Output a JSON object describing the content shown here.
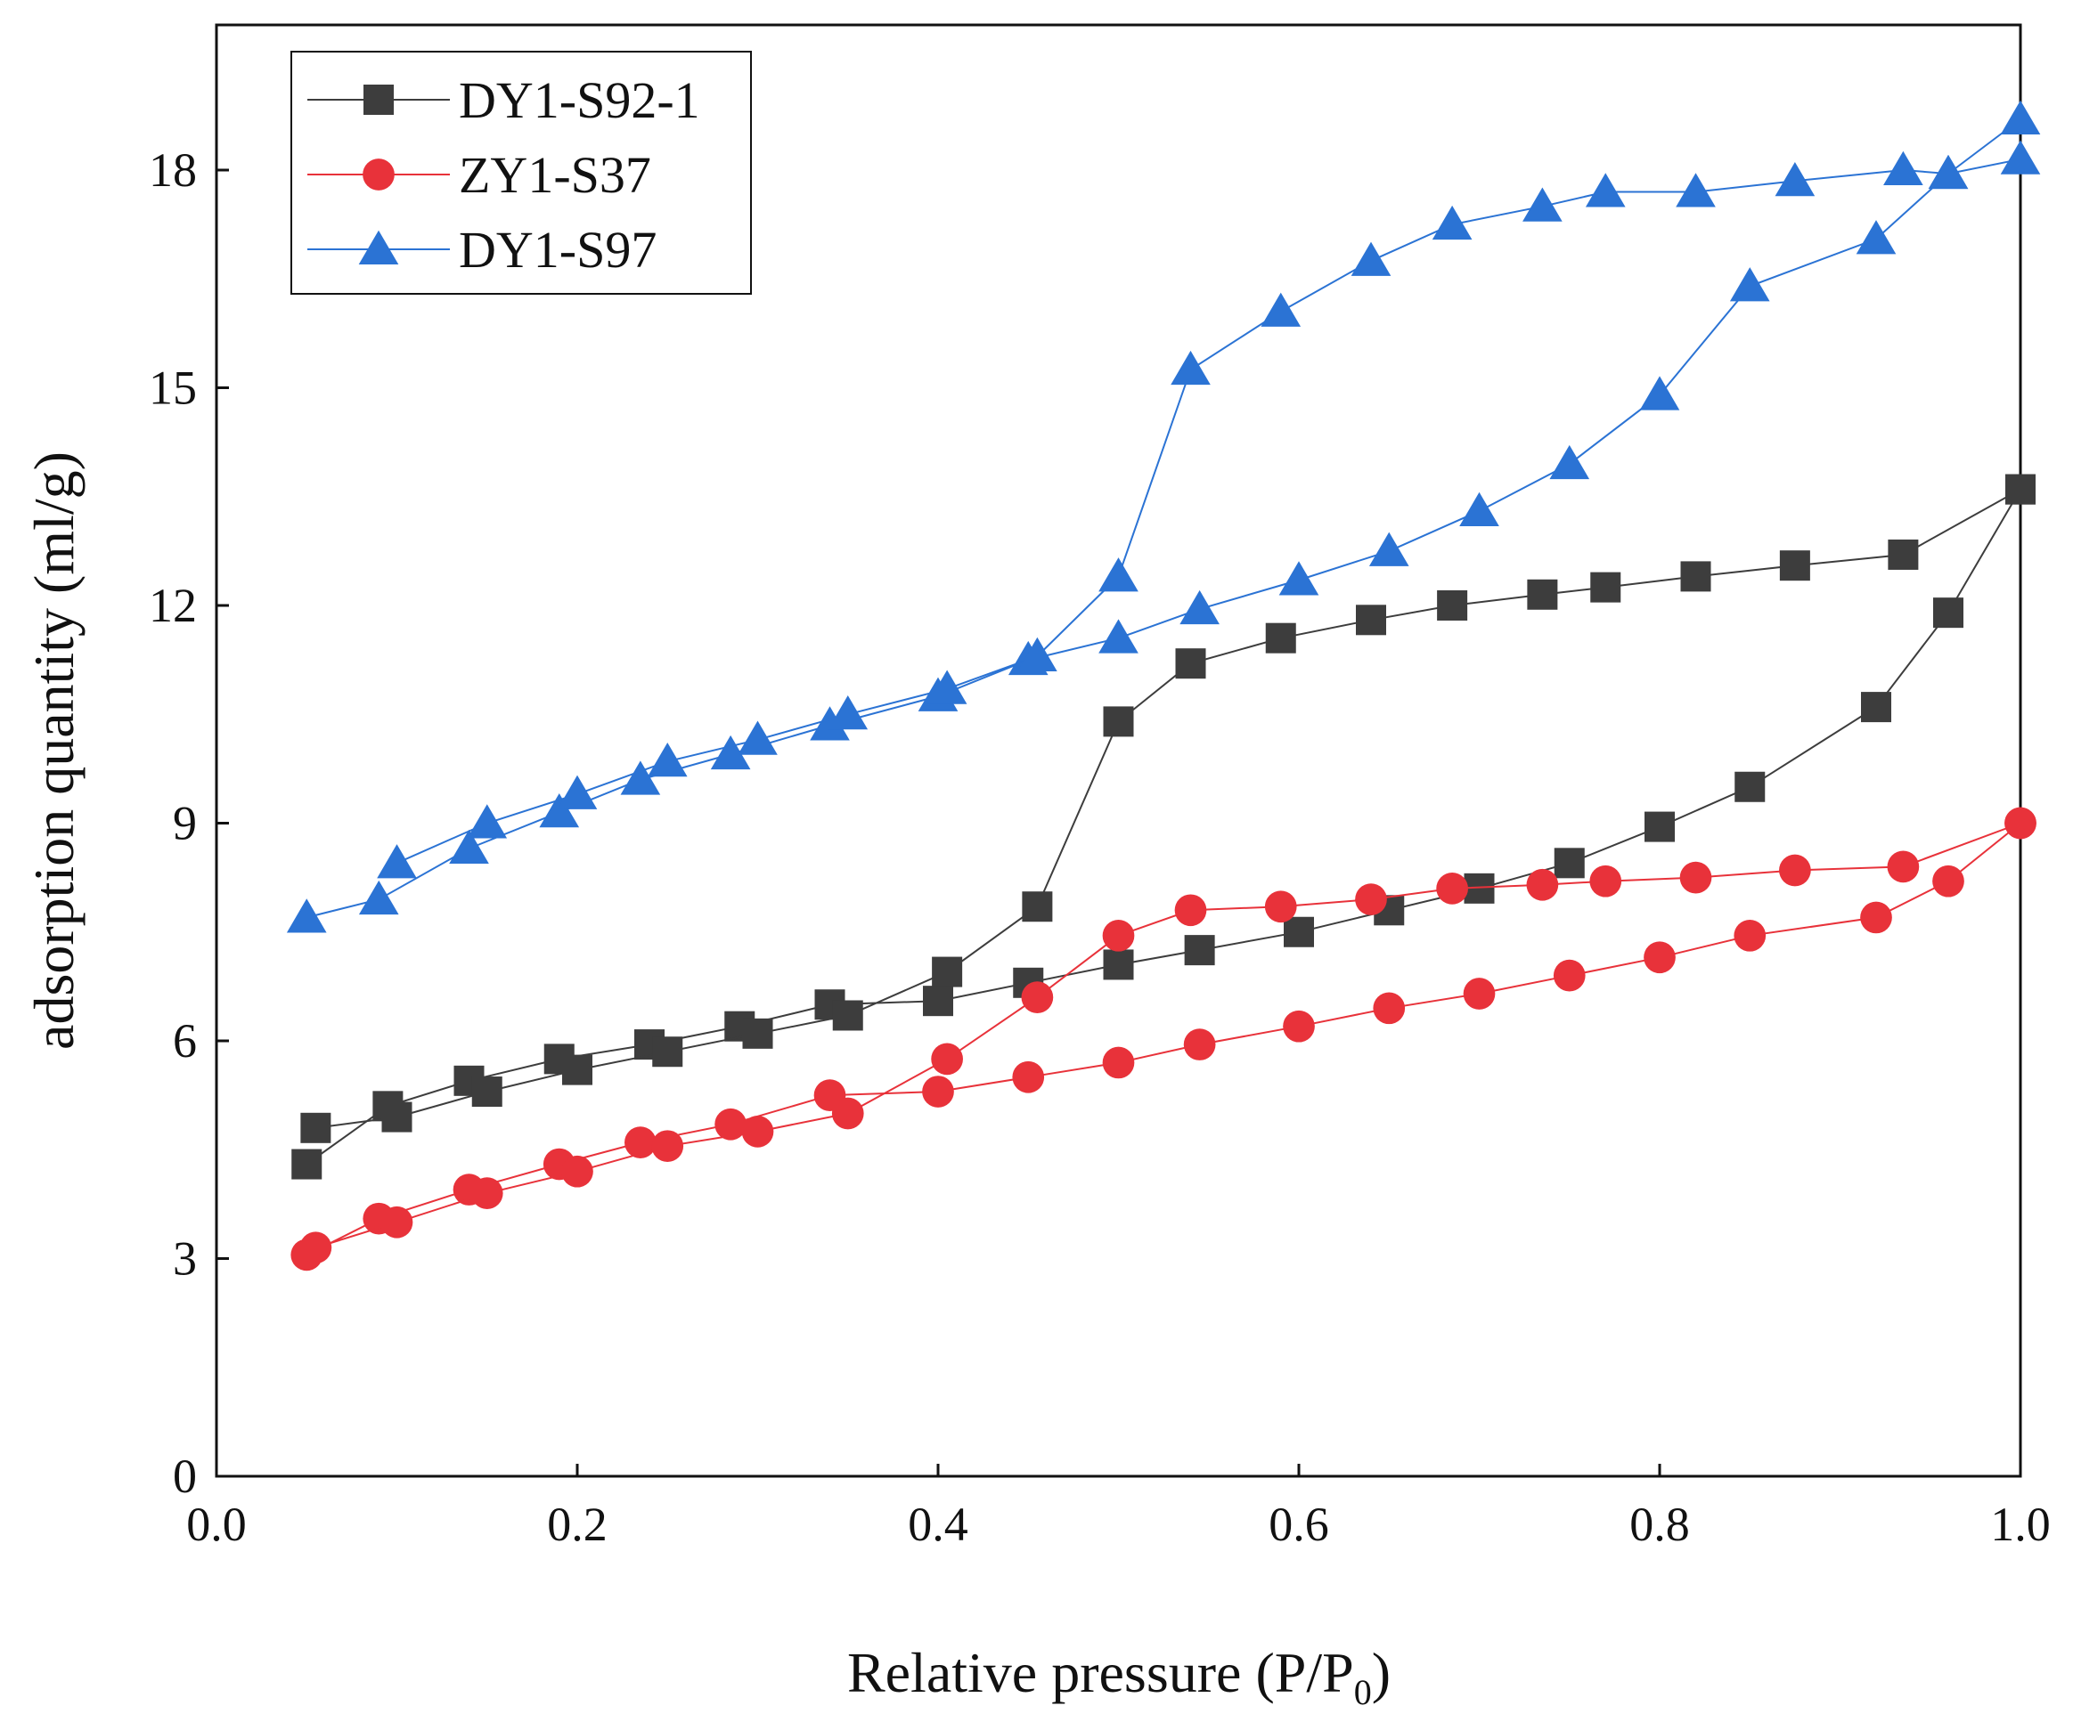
{
  "chart_data": {
    "type": "scatter",
    "title": "",
    "xlabel": "Relative pressure (P/P",
    "xlabel_subscript": "0",
    "xlabel_suffix": ")",
    "ylabel": "adsorption quantity (ml/g)",
    "xlim": [
      0.0,
      1.0
    ],
    "ylim": [
      0,
      20
    ],
    "x_ticks": [
      0.0,
      0.2,
      0.4,
      0.6,
      0.8,
      1.0
    ],
    "x_tick_labels": [
      "0.0",
      "0.2",
      "0.4",
      "0.6",
      "0.8",
      "1.0"
    ],
    "y_ticks": [
      0,
      3,
      6,
      9,
      12,
      15,
      18
    ],
    "y_tick_labels": [
      "0",
      "3",
      "6",
      "9",
      "12",
      "15",
      "18"
    ],
    "grid": false,
    "legend_position": "top-left",
    "series": [
      {
        "name": "DY1-S92-1",
        "color": "#3d3d3d",
        "marker": "square",
        "adsorption": {
          "x": [
            0.05,
            0.095,
            0.14,
            0.19,
            0.24,
            0.29,
            0.34,
            0.4,
            0.45,
            0.5,
            0.545,
            0.6,
            0.65,
            0.7,
            0.75,
            0.8,
            0.85,
            0.92,
            0.96,
            1.0
          ],
          "y": [
            4.3,
            5.1,
            5.45,
            5.75,
            5.95,
            6.2,
            6.5,
            6.55,
            6.8,
            7.05,
            7.25,
            7.5,
            7.8,
            8.1,
            8.45,
            8.95,
            9.5,
            10.6,
            11.9,
            13.6
          ]
        },
        "desorption": {
          "x": [
            1.0,
            0.935,
            0.875,
            0.82,
            0.77,
            0.735,
            0.685,
            0.64,
            0.59,
            0.54,
            0.5,
            0.455,
            0.405,
            0.35,
            0.3,
            0.25,
            0.2,
            0.15,
            0.1,
            0.055
          ],
          "y": [
            13.6,
            12.7,
            12.55,
            12.4,
            12.25,
            12.15,
            12.0,
            11.8,
            11.55,
            11.2,
            10.4,
            7.85,
            6.95,
            6.35,
            6.1,
            5.85,
            5.6,
            5.3,
            4.95,
            4.8
          ]
        }
      },
      {
        "name": "ZY1-S37",
        "color": "#e8323a",
        "marker": "circle",
        "adsorption": {
          "x": [
            0.05,
            0.09,
            0.14,
            0.19,
            0.235,
            0.285,
            0.34,
            0.4,
            0.45,
            0.5,
            0.545,
            0.6,
            0.65,
            0.7,
            0.75,
            0.8,
            0.85,
            0.92,
            0.96,
            1.0
          ],
          "y": [
            3.05,
            3.55,
            3.95,
            4.3,
            4.6,
            4.85,
            5.25,
            5.3,
            5.5,
            5.7,
            5.95,
            6.2,
            6.45,
            6.65,
            6.9,
            7.15,
            7.45,
            7.7,
            8.2,
            9.0
          ]
        },
        "desorption": {
          "x": [
            1.0,
            0.935,
            0.875,
            0.82,
            0.77,
            0.735,
            0.685,
            0.64,
            0.59,
            0.54,
            0.5,
            0.455,
            0.405,
            0.35,
            0.3,
            0.25,
            0.2,
            0.15,
            0.1,
            0.055
          ],
          "y": [
            9.0,
            8.4,
            8.35,
            8.25,
            8.2,
            8.15,
            8.1,
            7.95,
            7.85,
            7.8,
            7.45,
            6.6,
            5.75,
            5.0,
            4.75,
            4.55,
            4.2,
            3.9,
            3.5,
            3.15
          ]
        }
      },
      {
        "name": "DY1-S97",
        "color": "#2b73d4",
        "marker": "triangle",
        "adsorption": {
          "x": [
            0.05,
            0.09,
            0.14,
            0.19,
            0.235,
            0.285,
            0.34,
            0.4,
            0.45,
            0.5,
            0.545,
            0.6,
            0.65,
            0.7,
            0.75,
            0.8,
            0.85,
            0.92,
            0.96,
            1.0
          ],
          "y": [
            7.7,
            7.95,
            8.65,
            9.15,
            9.6,
            9.95,
            10.35,
            10.75,
            11.25,
            11.55,
            11.95,
            12.35,
            12.75,
            13.3,
            13.95,
            14.9,
            16.4,
            17.05,
            17.95,
            18.7
          ]
        },
        "desorption": {
          "x": [
            1.0,
            0.96,
            0.935,
            0.875,
            0.82,
            0.77,
            0.735,
            0.685,
            0.64,
            0.59,
            0.54,
            0.5,
            0.455,
            0.405,
            0.35,
            0.3,
            0.25,
            0.2,
            0.15,
            0.1
          ],
          "y": [
            18.15,
            17.95,
            18.0,
            17.85,
            17.7,
            17.7,
            17.5,
            17.25,
            16.75,
            16.05,
            15.25,
            12.4,
            11.3,
            10.85,
            10.5,
            10.15,
            9.85,
            9.4,
            9.0,
            8.45
          ]
        }
      }
    ]
  }
}
